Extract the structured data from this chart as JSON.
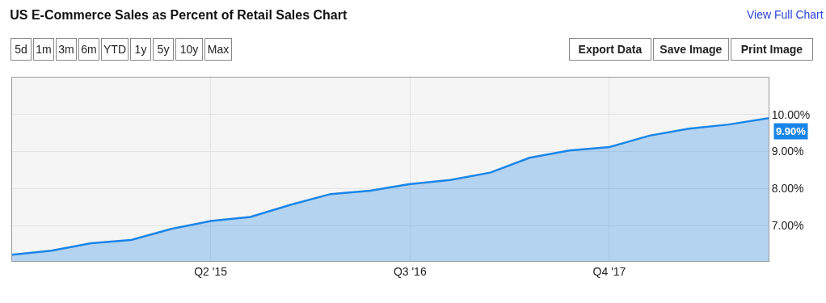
{
  "chart_data": {
    "type": "area",
    "title": "US E-Commerce Sales as Percent of Retail Sales Chart",
    "annotations": [
      "View Full Chart",
      "5d",
      "1m",
      "3m",
      "6m",
      "YTD",
      "1y",
      "5y",
      "10y",
      "Max",
      "Export Data",
      "Save Image",
      "Print Image"
    ],
    "x": [
      "2014-01",
      "2014-04",
      "2014-07",
      "2014-10",
      "2015-01",
      "2015-04",
      "2015-07",
      "2015-10",
      "2016-01",
      "2016-04",
      "2016-07",
      "2016-10",
      "2017-01",
      "2017-04",
      "2017-07",
      "2017-10",
      "2018-01",
      "2018-04",
      "2018-07",
      "2018-10"
    ],
    "series": [
      {
        "color": "#1a85e8",
        "values": [
          6.21,
          6.32,
          6.52,
          6.61,
          6.91,
          7.12,
          7.23,
          7.56,
          7.85,
          7.94,
          8.12,
          8.23,
          8.43,
          8.83,
          9.03,
          9.12,
          9.43,
          9.62,
          9.73,
          9.9
        ],
        "value_labels": [
          null,
          null,
          null,
          null,
          null,
          null,
          null,
          null,
          null,
          null,
          null,
          null,
          null,
          null,
          null,
          null,
          null,
          null,
          null,
          "9.90%"
        ]
      }
    ],
    "xlim": [
      "2014-01",
      "2018-10"
    ],
    "xticks": [
      {
        "value": "2015-04",
        "label": "Q2 '15"
      },
      {
        "value": "2016-07",
        "label": "Q3 '16"
      },
      {
        "value": "2017-10",
        "label": "Q4 '17"
      }
    ],
    "ylim": [
      6.04,
      11.0
    ],
    "yticks": [
      {
        "value": 7,
        "label": "7.00%"
      },
      {
        "value": 8,
        "label": "8.00%"
      },
      {
        "value": 9,
        "label": "9.00%"
      },
      {
        "value": 10,
        "label": "10.00%"
      }
    ],
    "grid": true
  }
}
